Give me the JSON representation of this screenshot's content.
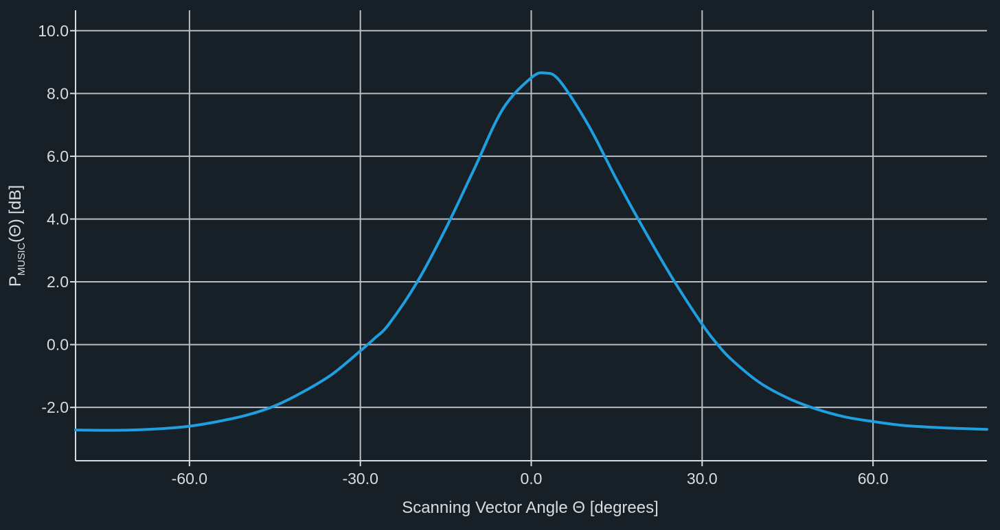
{
  "colors": {
    "background": "#172027",
    "grid": "#b8bec3",
    "axis": "#d6dde3",
    "line": "#1f9fe0",
    "text": "#d6dde3"
  },
  "chart_data": {
    "type": "line",
    "title": "",
    "xlabel": "Scanning Vector Angle Θ [degrees]",
    "ylabel": {
      "main": "P",
      "subscript": "MUSIC",
      "rest": "(Θ) [dB]"
    },
    "xlim": [
      -80,
      80
    ],
    "ylim": [
      -3.7,
      10.65
    ],
    "x_ticks": [
      -60,
      -30,
      0,
      30,
      60
    ],
    "x_tick_labels": [
      "-60.0",
      "-30.0",
      "0.0",
      "30.0",
      "60.0"
    ],
    "y_ticks": [
      -2,
      0,
      2,
      4,
      6,
      8,
      10
    ],
    "y_tick_labels": [
      "-2.0",
      "0.0",
      "2.0",
      "4.0",
      "6.0",
      "8.0",
      "10.0"
    ],
    "grid": true,
    "legend": false,
    "series": [
      {
        "x": [
          -80,
          -75,
          -70,
          -65,
          -60,
          -55,
          -50,
          -45,
          -40,
          -35,
          -30,
          -27.5,
          -25,
          -20,
          -15,
          -10,
          -5,
          0,
          2.5,
          5,
          10,
          15,
          20,
          25,
          30,
          32.5,
          35,
          40,
          45,
          50,
          55,
          60,
          65,
          70,
          75,
          80
        ],
        "y": [
          -2.72,
          -2.73,
          -2.72,
          -2.68,
          -2.6,
          -2.45,
          -2.25,
          -1.95,
          -1.5,
          -0.95,
          -0.2,
          0.2,
          0.65,
          2.0,
          3.7,
          5.6,
          7.5,
          8.5,
          8.65,
          8.4,
          7.0,
          5.25,
          3.6,
          2.05,
          0.65,
          0.05,
          -0.45,
          -1.2,
          -1.7,
          -2.05,
          -2.3,
          -2.45,
          -2.57,
          -2.63,
          -2.67,
          -2.7
        ]
      }
    ]
  }
}
